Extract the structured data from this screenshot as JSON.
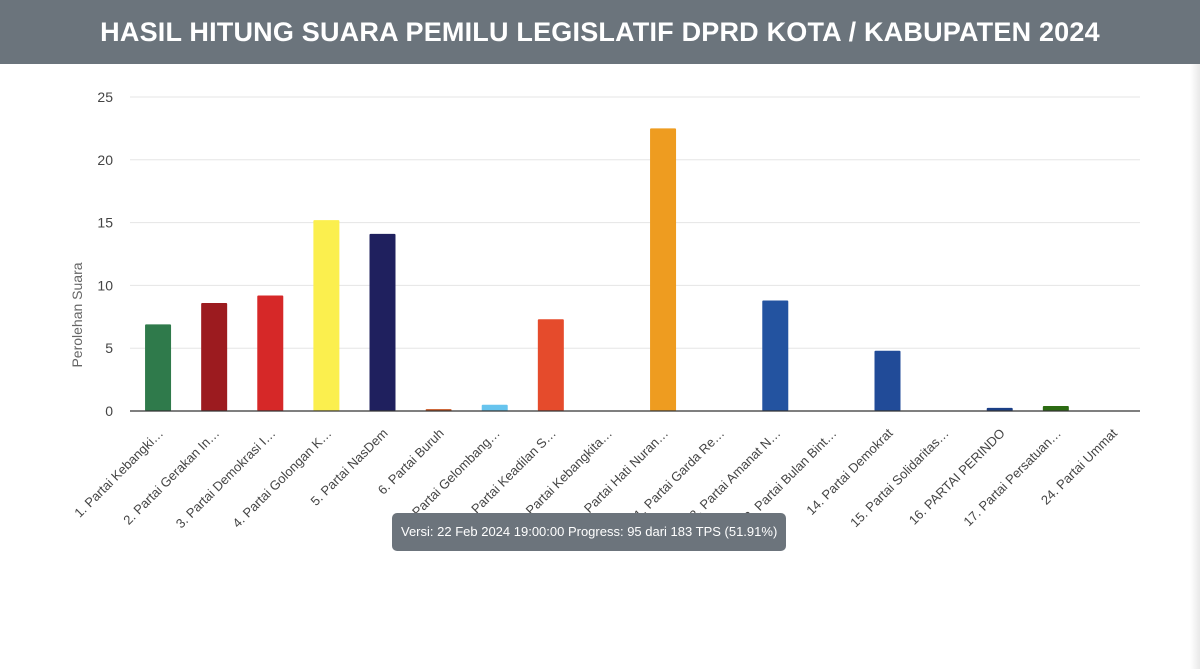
{
  "page": {
    "title": "HASIL HITUNG SUARA PEMILU LEGISLATIF DPRD KOTA / KABUPATEN 2024",
    "tooltip": "Versi: 22 Feb 2024 19:00:00 Progress: 95 dari 183 TPS (51.91%)"
  },
  "chart_data": {
    "type": "bar",
    "title": "",
    "xlabel": "",
    "ylabel": "Perolehan Suara",
    "ylim": [
      0,
      25
    ],
    "yticks": [
      0,
      5,
      10,
      15,
      20,
      25
    ],
    "grid": true,
    "legend": "none",
    "categories": [
      "1. Partai Kebangki…",
      "2. Partai Gerakan In…",
      "3. Partai Demokrasi I…",
      "4. Partai Golongan K…",
      "5. Partai NasDem",
      "6. Partai Buruh",
      "7. Partai Gelombang…",
      "8. Partai Keadilan S…",
      "9. Partai Kebangkita…",
      "10. Partai Hati Nuran…",
      "11. Partai Garda Re…",
      "12. Partai Amanat N…",
      "13. Partai Bulan Bint…",
      "14. Partai Demokrat",
      "15. Partai Solidaritas…",
      "16. PARTAI PERINDO",
      "17. Partai Persatuan…",
      "24. Partai Ummat"
    ],
    "values": [
      6.9,
      8.6,
      9.2,
      15.2,
      14.1,
      0.15,
      0.5,
      7.3,
      0,
      22.5,
      0,
      8.8,
      0,
      4.8,
      0,
      0.25,
      0.4,
      0
    ],
    "colors": [
      "#2f7a4b",
      "#9c1b1f",
      "#d62828",
      "#fbef4e",
      "#1f205e",
      "#c8531e",
      "#67c4ee",
      "#e54b2c",
      "#2f7a4b",
      "#ee9c20",
      "#8a1820",
      "#2353a0",
      "#256b3a",
      "#214b98",
      "#c8211f",
      "#1b3f86",
      "#2c6b12",
      "#1e4a8c"
    ]
  }
}
